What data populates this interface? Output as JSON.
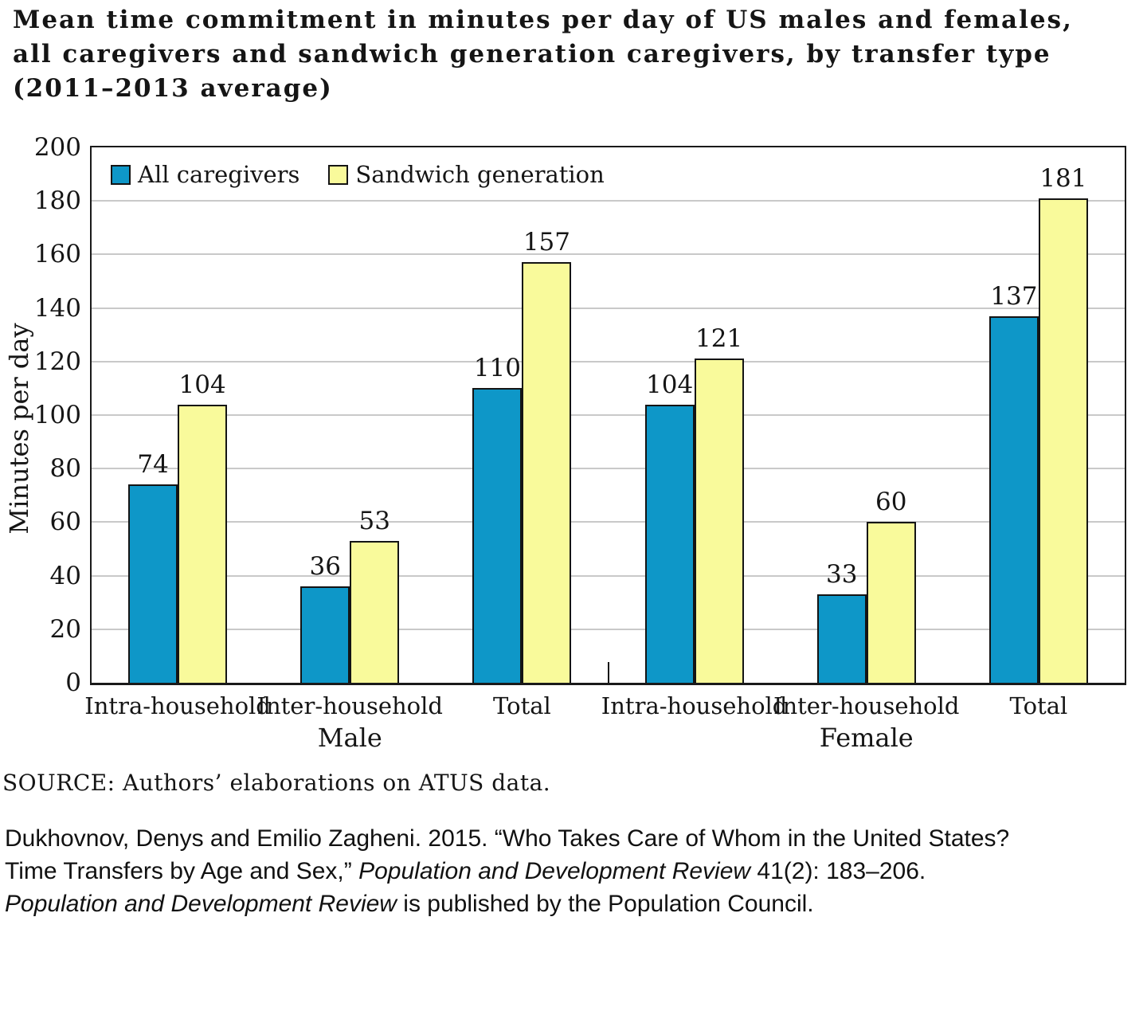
{
  "title": {
    "line1": "Mean time commitment in minutes per day of US males and females,",
    "line2": "all caregivers and sandwich generation caregivers, by transfer type",
    "line3": "(2011–2013 average)"
  },
  "chart_data": {
    "type": "bar",
    "ylabel": "Minutes per day",
    "xlabel": "",
    "ylim": [
      0,
      200
    ],
    "yticks": [
      0,
      20,
      40,
      60,
      80,
      100,
      120,
      140,
      160,
      180,
      200
    ],
    "grid": true,
    "gridline_color": "#c9c9c9",
    "axis_color": "#1a1a1a",
    "legend_position": "top-left",
    "categories": [
      "Intra-household",
      "Inter-household",
      "Total",
      "Intra-household",
      "Inter-household",
      "Total"
    ],
    "group_labels": [
      "Male",
      "Female"
    ],
    "series": [
      {
        "name": "All caregivers",
        "color": "#0e97c8",
        "values": [
          74,
          36,
          110,
          104,
          33,
          137
        ]
      },
      {
        "name": "Sandwich generation",
        "color": "#f9fa9b",
        "values": [
          104,
          53,
          157,
          121,
          60,
          181
        ]
      }
    ]
  },
  "source": "SOURCE: Authors’ elaborations on ATUS data.",
  "citation": {
    "line1": "Dukhovnov, Denys and Emilio Zagheni. 2015. “Who Takes Care of Whom in the United States?",
    "line2_pre": "Time Transfers by Age and Sex,” ",
    "line2_italic": "Population and Development Review",
    "line2_post": " 41(2): 183–206.",
    "line3_italic": "Population and Development Review",
    "line3_post": " is published by the Population Council."
  }
}
